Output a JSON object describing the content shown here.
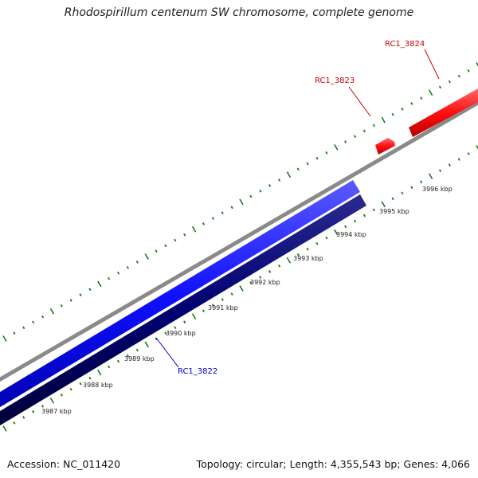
{
  "title": "Rhodospirillum centenum SW chromosome, complete genome",
  "footer": {
    "accession": "Accession: NC_011420",
    "stats": "Topology: circular; Length: 4,355,543 bp; Genes: 4,066"
  },
  "ruler": {
    "unit": "kbp",
    "labels": [
      "3987 kbp",
      "3988 kbp",
      "3989 kbp",
      "3990 kbp",
      "3991 kbp",
      "3992 kbp",
      "3993 kbp",
      "3994 kbp",
      "3995 kbp",
      "3996 kbp"
    ]
  },
  "genes": [
    {
      "id": "RC1_3822",
      "color": "#0000cc",
      "strand": "minus"
    },
    {
      "id": "RC1_3823",
      "color": "#cc0000",
      "strand": "plus"
    },
    {
      "id": "RC1_3824",
      "color": "#cc0000",
      "strand": "plus"
    }
  ],
  "colors": {
    "backbone": "#888888",
    "blue_gene": "#1a1aff",
    "navy_gene": "#000066",
    "red_gene": "#ff1a1a",
    "tick": "#1a7a1a"
  }
}
